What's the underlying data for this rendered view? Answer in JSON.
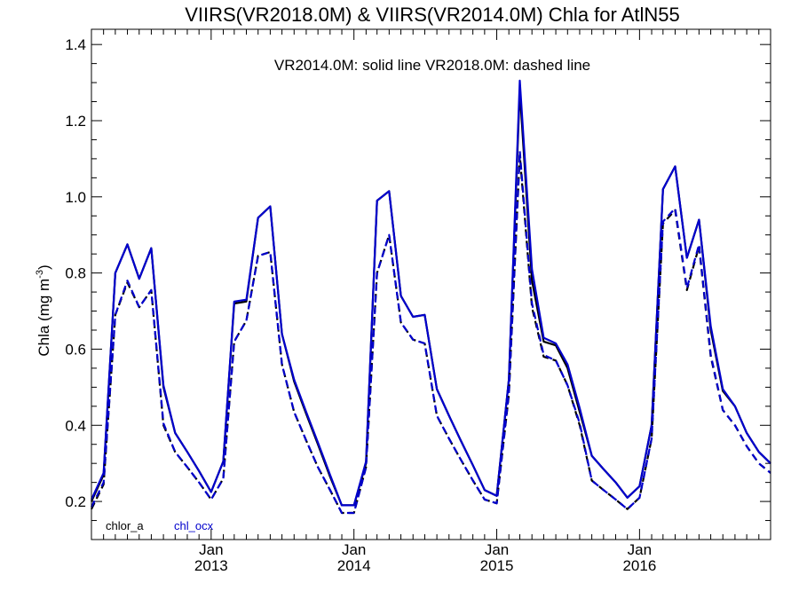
{
  "chart_data": {
    "type": "line",
    "title": "VIIRS(VR2018.0M) & VIIRS(VR2014.0M)  Chla for AtlN55",
    "annotation": "VR2014.0M: solid line   VR2018.0M: dashed line",
    "ylabel": "Chla (mg m",
    "ylabel_sup": "-3",
    "ylabel_close": ")",
    "xlim": [
      "2012-03-01",
      "2016-12-01"
    ],
    "ylim": [
      0.1,
      1.44
    ],
    "y_ticks": [
      0.2,
      0.4,
      0.6,
      0.8,
      1.0,
      1.2,
      1.4
    ],
    "y_tick_labels": [
      "0.2",
      "0.4",
      "0.6",
      "0.8",
      "1.0",
      "1.2",
      "1.4"
    ],
    "x_ticks": [
      {
        "date": "2013-01-01",
        "month": "Jan",
        "year": "2013"
      },
      {
        "date": "2014-01-01",
        "month": "Jan",
        "year": "2014"
      },
      {
        "date": "2015-01-01",
        "month": "Jan",
        "year": "2015"
      },
      {
        "date": "2016-01-01",
        "month": "Jan",
        "year": "2016"
      }
    ],
    "legend": [
      {
        "label": "chlor_a",
        "color": "#000000"
      },
      {
        "label": "chl_ocx",
        "color": "#0000cc"
      }
    ],
    "legend_position": "bottom-left",
    "x": [
      "2012-03-01",
      "2012-04-01",
      "2012-05-01",
      "2012-06-01",
      "2012-07-01",
      "2012-08-01",
      "2012-09-01",
      "2012-10-01",
      "2012-11-01",
      "2012-12-01",
      "2013-01-01",
      "2013-02-01",
      "2013-03-01",
      "2013-04-01",
      "2013-05-01",
      "2013-06-01",
      "2013-07-01",
      "2013-08-01",
      "2013-09-01",
      "2013-10-01",
      "2013-11-01",
      "2013-12-01",
      "2014-01-01",
      "2014-02-01",
      "2014-03-01",
      "2014-04-01",
      "2014-05-01",
      "2014-06-01",
      "2014-07-01",
      "2014-08-01",
      "2014-09-01",
      "2014-10-01",
      "2014-11-01",
      "2014-12-01",
      "2015-01-01",
      "2015-02-01",
      "2015-03-01",
      "2015-04-01",
      "2015-05-01",
      "2015-06-01",
      "2015-07-01",
      "2015-08-01",
      "2015-09-01",
      "2015-10-01",
      "2015-11-01",
      "2015-12-01",
      "2016-01-01",
      "2016-02-01",
      "2016-03-01",
      "2016-04-01",
      "2016-05-01",
      "2016-06-01",
      "2016-07-01",
      "2016-08-01",
      "2016-09-01",
      "2016-10-01",
      "2016-11-01",
      "2016-12-01"
    ],
    "series": [
      {
        "name": "VR2014.0M chlor_a",
        "color": "#000000",
        "dash": "solid",
        "values": [
          0.2,
          0.27,
          0.8,
          0.875,
          0.785,
          0.865,
          0.5,
          0.38,
          0.33,
          0.28,
          0.225,
          0.305,
          0.72,
          0.725,
          0.945,
          0.975,
          0.64,
          0.515,
          0.43,
          0.35,
          0.265,
          0.19,
          0.19,
          0.3,
          0.99,
          1.015,
          0.74,
          0.685,
          0.69,
          0.495,
          0.425,
          0.36,
          0.295,
          0.23,
          0.215,
          0.52,
          1.28,
          0.78,
          0.62,
          0.61,
          0.55,
          0.435,
          0.32,
          0.285,
          0.25,
          0.21,
          0.24,
          0.4,
          1.02,
          1.08,
          0.84,
          0.94,
          0.65,
          0.49,
          0.45,
          0.38,
          0.33,
          0.3
        ]
      },
      {
        "name": "VR2014.0M chl_ocx",
        "color": "#0000cc",
        "dash": "solid",
        "values": [
          0.205,
          0.275,
          0.8,
          0.875,
          0.785,
          0.865,
          0.505,
          0.38,
          0.33,
          0.28,
          0.225,
          0.305,
          0.725,
          0.73,
          0.945,
          0.975,
          0.64,
          0.52,
          0.435,
          0.355,
          0.27,
          0.19,
          0.19,
          0.305,
          0.99,
          1.015,
          0.74,
          0.685,
          0.69,
          0.495,
          0.425,
          0.36,
          0.295,
          0.23,
          0.215,
          0.52,
          1.305,
          0.81,
          0.63,
          0.615,
          0.56,
          0.445,
          0.32,
          0.285,
          0.25,
          0.21,
          0.24,
          0.4,
          1.02,
          1.08,
          0.84,
          0.94,
          0.66,
          0.495,
          0.45,
          0.38,
          0.33,
          0.3
        ]
      },
      {
        "name": "VR2018.0M chlor_a",
        "color": "#000000",
        "dash": "dashed",
        "values": [
          0.18,
          0.245,
          0.69,
          0.775,
          0.71,
          0.755,
          0.4,
          0.33,
          0.29,
          0.25,
          0.205,
          0.26,
          0.62,
          0.675,
          0.845,
          0.855,
          0.56,
          0.435,
          0.36,
          0.29,
          0.23,
          0.17,
          0.17,
          0.29,
          0.8,
          0.9,
          0.67,
          0.625,
          0.615,
          0.425,
          0.365,
          0.31,
          0.255,
          0.205,
          0.195,
          0.48,
          1.11,
          0.71,
          0.58,
          0.57,
          0.505,
          0.4,
          0.255,
          0.23,
          0.205,
          0.18,
          0.21,
          0.365,
          0.93,
          0.965,
          0.755,
          0.87,
          0.58,
          0.44,
          0.4,
          0.345,
          0.3,
          0.275
        ]
      },
      {
        "name": "VR2018.0M chl_ocx",
        "color": "#0000cc",
        "dash": "dashed",
        "values": [
          0.185,
          0.25,
          0.69,
          0.78,
          0.71,
          0.755,
          0.405,
          0.33,
          0.29,
          0.25,
          0.205,
          0.26,
          0.62,
          0.675,
          0.845,
          0.855,
          0.56,
          0.435,
          0.36,
          0.29,
          0.23,
          0.17,
          0.17,
          0.29,
          0.8,
          0.9,
          0.67,
          0.625,
          0.615,
          0.425,
          0.365,
          0.31,
          0.255,
          0.205,
          0.195,
          0.485,
          1.12,
          0.72,
          0.585,
          0.57,
          0.505,
          0.405,
          0.255,
          0.23,
          0.205,
          0.18,
          0.21,
          0.365,
          0.935,
          0.97,
          0.76,
          0.875,
          0.585,
          0.44,
          0.4,
          0.345,
          0.3,
          0.275
        ]
      }
    ]
  }
}
